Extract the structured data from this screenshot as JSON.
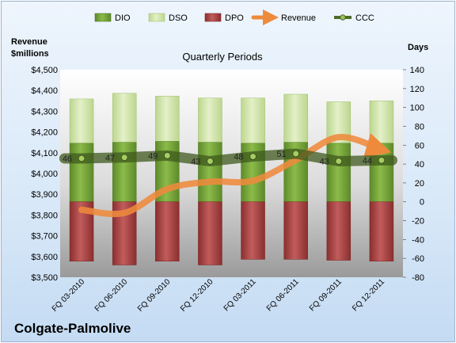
{
  "company": "Colgate-Palmolive",
  "chart_data": {
    "type": "bar",
    "title": "Quarterly Periods",
    "y_left_label": [
      "Revenue",
      "$millions"
    ],
    "y_right_label": "Days",
    "categories": [
      "FQ 03-2010",
      "FQ 06-2010",
      "FQ 09-2010",
      "FQ 12-2010",
      "FQ 03-2011",
      "FQ 06-2011",
      "FQ 09-2011",
      "FQ 12-2011"
    ],
    "y_left_lim": [
      3500,
      4500
    ],
    "y_left_ticks": [
      "$3,500",
      "$3,600",
      "$3,700",
      "$3,800",
      "$3,900",
      "$4,000",
      "$4,100",
      "$4,200",
      "$4,300",
      "$4,400",
      "$4,500"
    ],
    "y_right_lim": [
      -80,
      140
    ],
    "y_right_ticks": [
      "-80",
      "-60",
      "-40",
      "-20",
      "0",
      "20",
      "40",
      "60",
      "80",
      "100",
      "120",
      "140"
    ],
    "legend": [
      "DIO",
      "DSO",
      "DPO",
      "Revenue",
      "CCC"
    ],
    "series": [
      {
        "name": "DIO",
        "axis": "days",
        "stacked": true,
        "values": [
          62,
          63,
          64,
          63,
          62,
          63,
          62,
          62
        ],
        "color": "#77a03a"
      },
      {
        "name": "DSO",
        "axis": "days",
        "stacked": true,
        "values": [
          47,
          52,
          48,
          47,
          48,
          51,
          44,
          45
        ],
        "color": "#d2e5a9"
      },
      {
        "name": "DPO",
        "axis": "days",
        "stacked": "negative",
        "values": [
          -63,
          -67,
          -63,
          -67,
          -61,
          -61,
          -62,
          -63
        ],
        "color": "#a84848"
      },
      {
        "name": "Revenue",
        "axis": "revenue",
        "values": [
          3825,
          3810,
          3925,
          3960,
          3965,
          4065,
          4175,
          4115
        ],
        "color": "#ee8a3c"
      },
      {
        "name": "CCC",
        "axis": "days",
        "values": [
          46,
          47,
          49,
          43,
          48,
          51,
          43,
          44
        ],
        "labels": [
          "46",
          "47",
          "49",
          "43",
          "48",
          "51",
          "43",
          "44"
        ],
        "color": "#4f6b2a"
      }
    ],
    "grid": false,
    "legend_position": "top"
  }
}
